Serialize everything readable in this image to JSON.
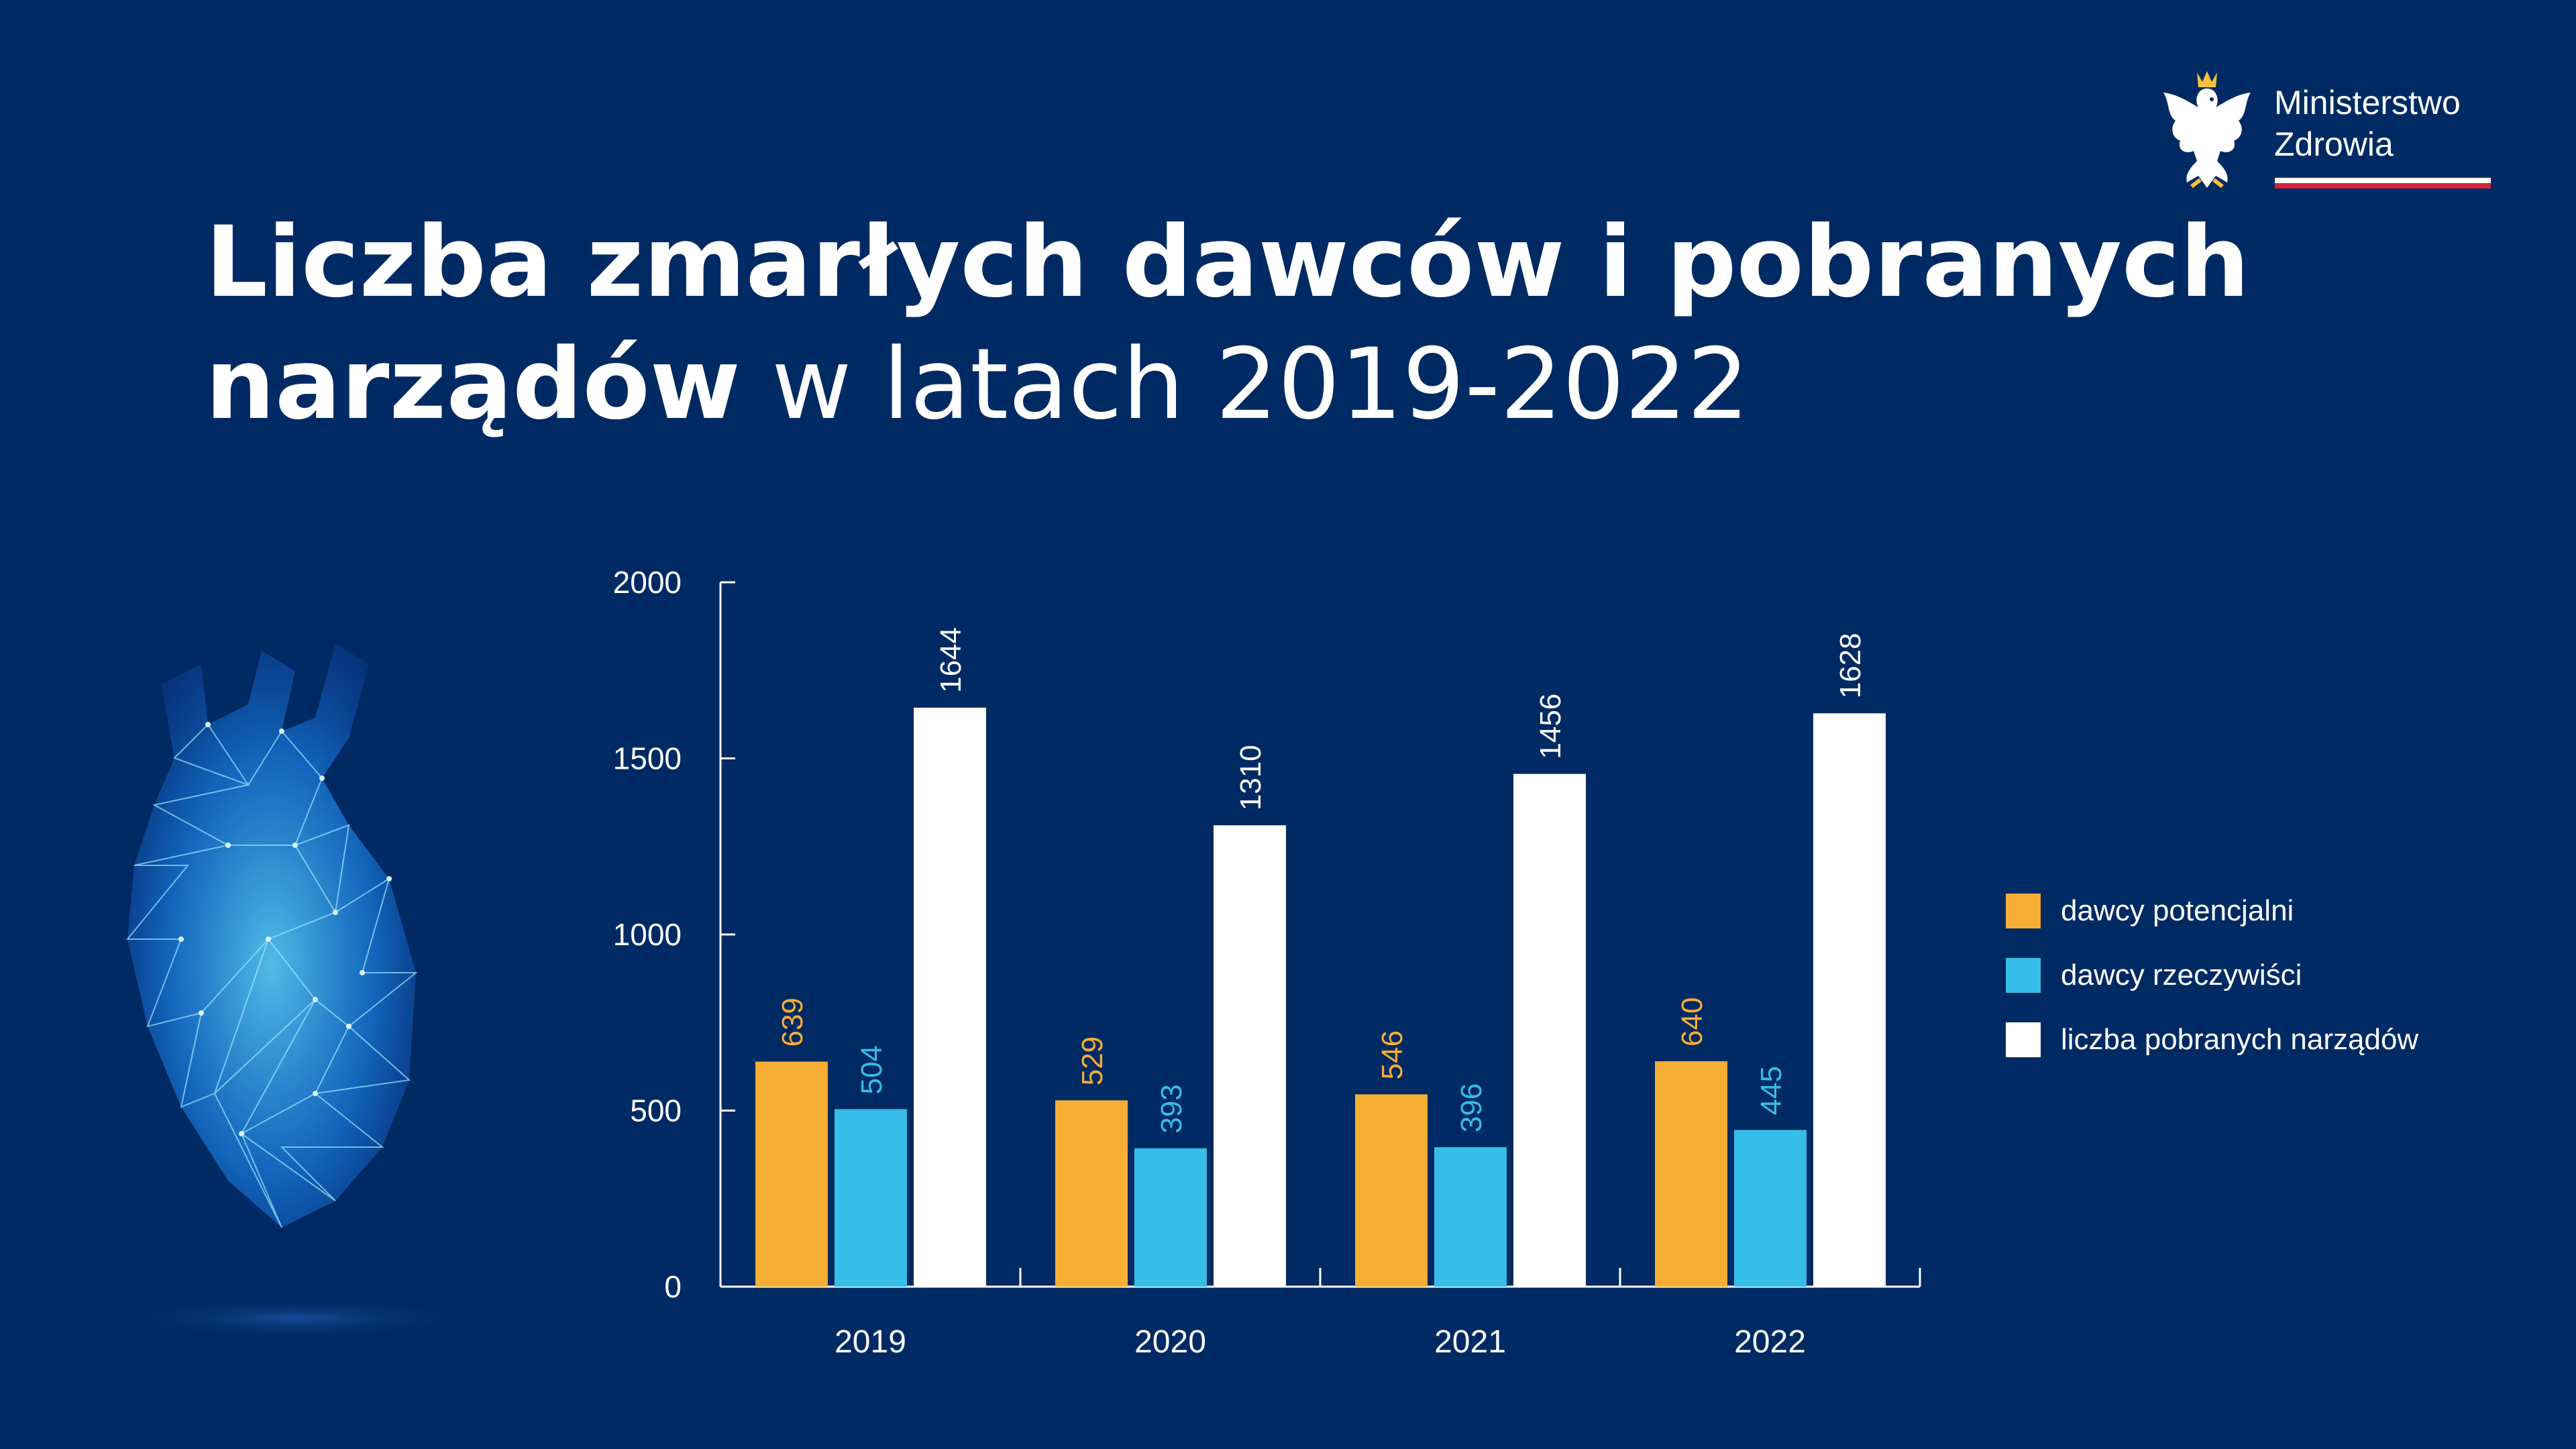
{
  "logo": {
    "line1": "Ministerstwo",
    "line2": "Zdrowia",
    "icon": "eagle-emblem-icon"
  },
  "title": {
    "bold1": "Liczba zmarłych dawców i pobranych",
    "bold2": "narządów",
    "normal2": " w latach 2019-2022"
  },
  "colors": {
    "background": "#002a63",
    "potencjalni": "#f6ae35",
    "rzeczywisci": "#36bde8",
    "narzady": "#ffffff"
  },
  "chart_data": {
    "type": "bar",
    "categories": [
      "2019",
      "2020",
      "2021",
      "2022"
    ],
    "series": [
      {
        "name": "dawcy potencjalni",
        "values": [
          639,
          529,
          546,
          640
        ]
      },
      {
        "name": "dawcy rzeczywiści",
        "values": [
          504,
          393,
          396,
          445
        ]
      },
      {
        "name": "liczba pobranych narządów",
        "values": [
          1644,
          1310,
          1456,
          1628
        ]
      }
    ],
    "yticks": [
      "0",
      "500",
      "1000",
      "1500",
      "2000"
    ],
    "ylim": [
      0,
      2000
    ],
    "legend_position": "right",
    "grid": false,
    "data_labels": "rotated, above bars"
  }
}
